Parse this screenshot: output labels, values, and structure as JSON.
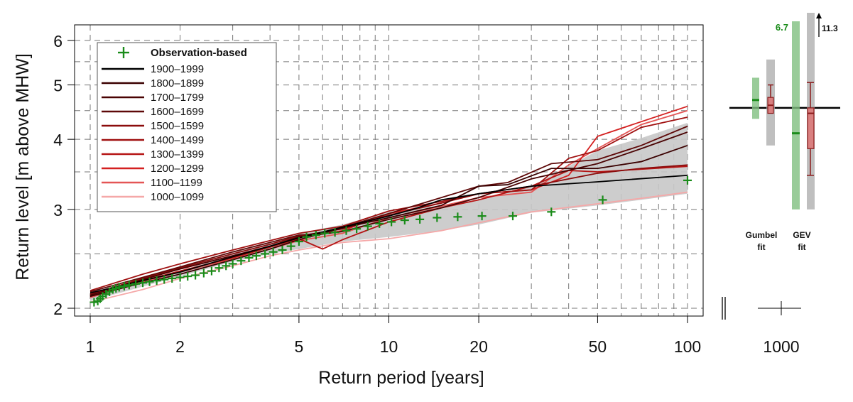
{
  "chart_data": {
    "type": "line",
    "xlabel": "Return period [years]",
    "ylabel": "Return level [m above MHW]",
    "x_scale": "log",
    "y_scale": "log",
    "xlim": [
      1,
      100
    ],
    "ylim": [
      2,
      6.2
    ],
    "xticks": [
      {
        "v": 1,
        "label": "1"
      },
      {
        "v": 2,
        "label": "2"
      },
      {
        "v": 5,
        "label": "5"
      },
      {
        "v": 10,
        "label": "10"
      },
      {
        "v": 20,
        "label": "20"
      },
      {
        "v": 50,
        "label": "50"
      },
      {
        "v": 100,
        "label": "100"
      }
    ],
    "yticks": [
      {
        "v": 2,
        "label": "2"
      },
      {
        "v": 3,
        "label": "3"
      },
      {
        "v": 4,
        "label": "4"
      },
      {
        "v": 5,
        "label": "5"
      },
      {
        "v": 6,
        "label": "6"
      }
    ],
    "grid": true,
    "legend_position": "top-left",
    "observation_label": "Observation-based",
    "observation_color": "#1a8c1a",
    "observations": [
      [
        1.03,
        2.05
      ],
      [
        1.06,
        2.06
      ],
      [
        1.08,
        2.08
      ],
      [
        1.1,
        2.1
      ],
      [
        1.13,
        2.12
      ],
      [
        1.16,
        2.14
      ],
      [
        1.19,
        2.16
      ],
      [
        1.22,
        2.17
      ],
      [
        1.25,
        2.18
      ],
      [
        1.3,
        2.19
      ],
      [
        1.35,
        2.2
      ],
      [
        1.42,
        2.21
      ],
      [
        1.5,
        2.22
      ],
      [
        1.58,
        2.23
      ],
      [
        1.67,
        2.24
      ],
      [
        1.77,
        2.25
      ],
      [
        1.88,
        2.26
      ],
      [
        2.0,
        2.27
      ],
      [
        2.12,
        2.28
      ],
      [
        2.25,
        2.29
      ],
      [
        2.4,
        2.31
      ],
      [
        2.55,
        2.33
      ],
      [
        2.7,
        2.36
      ],
      [
        2.85,
        2.38
      ],
      [
        3.0,
        2.4
      ],
      [
        3.2,
        2.43
      ],
      [
        3.4,
        2.46
      ],
      [
        3.6,
        2.48
      ],
      [
        3.85,
        2.5
      ],
      [
        4.1,
        2.52
      ],
      [
        4.4,
        2.54
      ],
      [
        4.7,
        2.58
      ],
      [
        5.0,
        2.63
      ],
      [
        5.3,
        2.68
      ],
      [
        5.7,
        2.7
      ],
      [
        6.1,
        2.72
      ],
      [
        6.6,
        2.73
      ],
      [
        7.2,
        2.75
      ],
      [
        7.8,
        2.77
      ],
      [
        8.5,
        2.8
      ],
      [
        9.3,
        2.83
      ],
      [
        10.2,
        2.85
      ],
      [
        11.3,
        2.87
      ],
      [
        12.7,
        2.88
      ],
      [
        14.5,
        2.9
      ],
      [
        17.0,
        2.91
      ],
      [
        20.5,
        2.92
      ],
      [
        26.0,
        2.92
      ],
      [
        35.0,
        2.97
      ],
      [
        52.0,
        3.12
      ],
      [
        100.0,
        3.38
      ]
    ],
    "band": {
      "color": "#c8c8c8",
      "upper": [
        [
          1,
          2.1
        ],
        [
          2,
          2.32
        ],
        [
          3,
          2.52
        ],
        [
          4,
          2.62
        ],
        [
          5,
          2.72
        ],
        [
          7,
          2.82
        ],
        [
          10,
          2.97
        ],
        [
          15,
          3.05
        ],
        [
          20,
          3.12
        ],
        [
          30,
          3.3
        ],
        [
          50,
          3.82
        ],
        [
          70,
          4.02
        ],
        [
          100,
          4.28
        ]
      ],
      "lower": [
        [
          1,
          2.06
        ],
        [
          2,
          2.28
        ],
        [
          3,
          2.42
        ],
        [
          4,
          2.5
        ],
        [
          5,
          2.55
        ],
        [
          7,
          2.63
        ],
        [
          10,
          2.68
        ],
        [
          15,
          2.75
        ],
        [
          20,
          2.82
        ],
        [
          30,
          2.96
        ],
        [
          50,
          3.05
        ],
        [
          70,
          3.12
        ],
        [
          100,
          3.2
        ]
      ]
    },
    "series": [
      {
        "name": "1900–1999",
        "color": "#000000",
        "points": [
          [
            1,
            2.13
          ],
          [
            1.5,
            2.24
          ],
          [
            2,
            2.32
          ],
          [
            3,
            2.47
          ],
          [
            4,
            2.58
          ],
          [
            5,
            2.67
          ],
          [
            7,
            2.79
          ],
          [
            10,
            2.92
          ],
          [
            12,
            3.0
          ],
          [
            15,
            3.12
          ],
          [
            20,
            3.2
          ],
          [
            30,
            3.3
          ],
          [
            50,
            3.36
          ],
          [
            100,
            3.45
          ]
        ]
      },
      {
        "name": "1800–1899",
        "color": "#3a0000",
        "points": [
          [
            1,
            2.1
          ],
          [
            1.5,
            2.22
          ],
          [
            2,
            2.3
          ],
          [
            3,
            2.44
          ],
          [
            4,
            2.55
          ],
          [
            5,
            2.65
          ],
          [
            7,
            2.78
          ],
          [
            10,
            2.9
          ],
          [
            15,
            3.05
          ],
          [
            20,
            3.3
          ],
          [
            25,
            3.32
          ],
          [
            35,
            3.55
          ],
          [
            50,
            3.55
          ],
          [
            70,
            3.65
          ],
          [
            100,
            3.9
          ]
        ]
      },
      {
        "name": "1700–1799",
        "color": "#4a0303",
        "points": [
          [
            1,
            2.11
          ],
          [
            1.5,
            2.25
          ],
          [
            2,
            2.35
          ],
          [
            3,
            2.48
          ],
          [
            4,
            2.58
          ],
          [
            5,
            2.68
          ],
          [
            7,
            2.74
          ],
          [
            10,
            2.88
          ],
          [
            15,
            3.02
          ],
          [
            20,
            3.15
          ],
          [
            30,
            3.4
          ],
          [
            50,
            3.62
          ],
          [
            70,
            3.85
          ],
          [
            100,
            4.12
          ]
        ]
      },
      {
        "name": "1600–1699",
        "color": "#5e0808",
        "points": [
          [
            1,
            2.14
          ],
          [
            1.5,
            2.27
          ],
          [
            2,
            2.37
          ],
          [
            3,
            2.52
          ],
          [
            4,
            2.62
          ],
          [
            5,
            2.7
          ],
          [
            6,
            2.72
          ],
          [
            10,
            2.95
          ],
          [
            15,
            3.15
          ],
          [
            20,
            3.3
          ],
          [
            25,
            3.35
          ],
          [
            35,
            3.62
          ],
          [
            50,
            3.68
          ],
          [
            70,
            3.9
          ],
          [
            100,
            4.22
          ]
        ]
      },
      {
        "name": "1500–1599",
        "color": "#8b0c0c",
        "points": [
          [
            1,
            2.12
          ],
          [
            1.5,
            2.26
          ],
          [
            2,
            2.36
          ],
          [
            3,
            2.5
          ],
          [
            4,
            2.6
          ],
          [
            5,
            2.69
          ],
          [
            7,
            2.77
          ],
          [
            10,
            2.93
          ],
          [
            15,
            3.08
          ],
          [
            20,
            3.2
          ],
          [
            30,
            3.3
          ],
          [
            50,
            3.48
          ],
          [
            70,
            3.55
          ],
          [
            100,
            3.6
          ]
        ]
      },
      {
        "name": "1400–1499",
        "color": "#a01010",
        "points": [
          [
            1,
            2.15
          ],
          [
            1.5,
            2.3
          ],
          [
            2,
            2.4
          ],
          [
            3,
            2.54
          ],
          [
            4,
            2.64
          ],
          [
            5,
            2.72
          ],
          [
            7,
            2.8
          ],
          [
            10,
            2.98
          ],
          [
            15,
            3.1
          ],
          [
            20,
            3.2
          ],
          [
            30,
            3.25
          ],
          [
            40,
            3.7
          ],
          [
            50,
            3.82
          ],
          [
            70,
            4.2
          ],
          [
            100,
            4.38
          ]
        ]
      },
      {
        "name": "1300–1399",
        "color": "#b51414",
        "points": [
          [
            1,
            2.1
          ],
          [
            1.5,
            2.24
          ],
          [
            2,
            2.33
          ],
          [
            3,
            2.46
          ],
          [
            4,
            2.57
          ],
          [
            5,
            2.66
          ],
          [
            6,
            2.55
          ],
          [
            7,
            2.65
          ],
          [
            10,
            2.85
          ],
          [
            15,
            3.02
          ],
          [
            20,
            3.12
          ],
          [
            30,
            3.3
          ],
          [
            40,
            3.52
          ],
          [
            50,
            3.5
          ],
          [
            100,
            3.58
          ]
        ]
      },
      {
        "name": "1200–1299",
        "color": "#d42020",
        "points": [
          [
            1,
            2.11
          ],
          [
            1.5,
            2.26
          ],
          [
            2,
            2.35
          ],
          [
            3,
            2.48
          ],
          [
            4,
            2.58
          ],
          [
            5,
            2.67
          ],
          [
            7,
            2.75
          ],
          [
            10,
            2.95
          ],
          [
            15,
            3.08
          ],
          [
            20,
            3.2
          ],
          [
            30,
            3.25
          ],
          [
            40,
            3.45
          ],
          [
            50,
            4.05
          ],
          [
            70,
            4.3
          ],
          [
            100,
            4.58
          ]
        ]
      },
      {
        "name": "1100–1199",
        "color": "#e45555",
        "points": [
          [
            1,
            2.09
          ],
          [
            1.5,
            2.23
          ],
          [
            2,
            2.32
          ],
          [
            3,
            2.45
          ],
          [
            4,
            2.55
          ],
          [
            5,
            2.64
          ],
          [
            7,
            2.72
          ],
          [
            10,
            2.9
          ],
          [
            15,
            3.04
          ],
          [
            20,
            3.15
          ],
          [
            30,
            3.22
          ],
          [
            40,
            3.6
          ],
          [
            50,
            3.85
          ],
          [
            70,
            4.25
          ],
          [
            100,
            4.5
          ]
        ]
      },
      {
        "name": "1000–1099",
        "color": "#f5a8a8",
        "points": [
          [
            1,
            2.05
          ],
          [
            1.5,
            2.16
          ],
          [
            2,
            2.26
          ],
          [
            3,
            2.38
          ],
          [
            4,
            2.48
          ],
          [
            5,
            2.54
          ],
          [
            7,
            2.62
          ],
          [
            10,
            2.66
          ],
          [
            15,
            2.75
          ],
          [
            20,
            2.84
          ],
          [
            30,
            2.97
          ],
          [
            50,
            3.07
          ],
          [
            70,
            3.14
          ],
          [
            100,
            3.22
          ]
        ]
      }
    ],
    "side_panel": {
      "reference_level": 4.55,
      "xtick_label": "1000",
      "gumbel_label": [
        "Gumbel",
        "fit"
      ],
      "gev_label": [
        "GEV",
        "fit"
      ],
      "gumbel_obs": {
        "low": 4.35,
        "high": 5.15,
        "median": 4.7,
        "color": "#7fbf7f"
      },
      "gumbel_model": {
        "low": 3.9,
        "high": 5.55,
        "box_low": 4.45,
        "box_high": 4.75,
        "median": 4.6,
        "whisker_low": 4.5,
        "whisker_high": 5.0
      },
      "gev_obs": {
        "low": 3.0,
        "high": 6.25,
        "median": 4.1,
        "top_label": "6.7"
      },
      "gev_model": {
        "low": 3.0,
        "high": 6.25,
        "box_low": 3.85,
        "box_high": 4.55,
        "median": 4.45,
        "whisker_low": 3.45,
        "whisker_high": 5.05,
        "top_label": "11.3"
      }
    }
  }
}
